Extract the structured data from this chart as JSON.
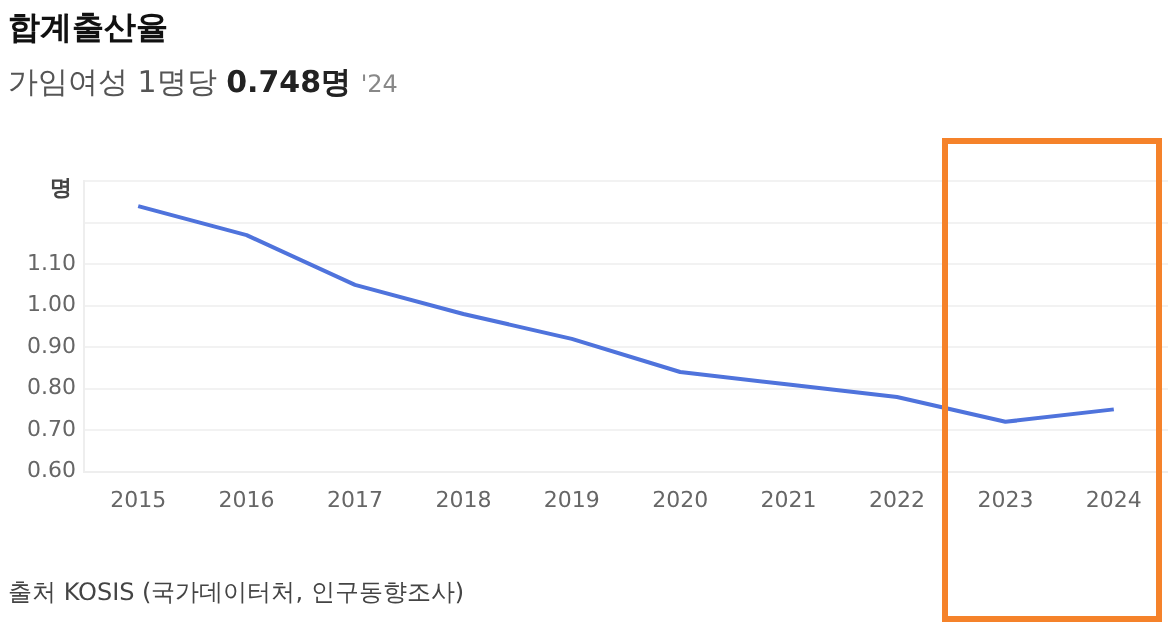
{
  "chart_data": {
    "type": "line",
    "title": "합계출산율",
    "subtitle": "가임여성 1명당 0.748명 '24",
    "ylabel": "명",
    "categories": [
      "2015",
      "2016",
      "2017",
      "2018",
      "2019",
      "2020",
      "2021",
      "2022",
      "2023",
      "2024"
    ],
    "series": [
      {
        "color": "#4f73dc",
        "values": [
          1.24,
          1.17,
          1.05,
          0.98,
          0.92,
          0.84,
          0.81,
          0.78,
          0.72,
          0.75
        ]
      }
    ],
    "ylim": [
      0.6,
      1.3
    ],
    "yticks": [
      {
        "value": 0.6,
        "label": "0.60"
      },
      {
        "value": 0.7,
        "label": "0.70"
      },
      {
        "value": 0.8,
        "label": "0.80"
      },
      {
        "value": 0.9,
        "label": "0.90"
      },
      {
        "value": 1.0,
        "label": "1.00"
      },
      {
        "value": 1.1,
        "label": "1.10"
      },
      {
        "value": 1.2,
        "label": null
      },
      {
        "value": 1.3,
        "label": null
      }
    ],
    "grid": "y",
    "legend": false,
    "marker": "none",
    "line_style": "solid",
    "annotations": [
      "출처 KOSIS (국가데이터처, 인구동향조사)"
    ]
  }
}
